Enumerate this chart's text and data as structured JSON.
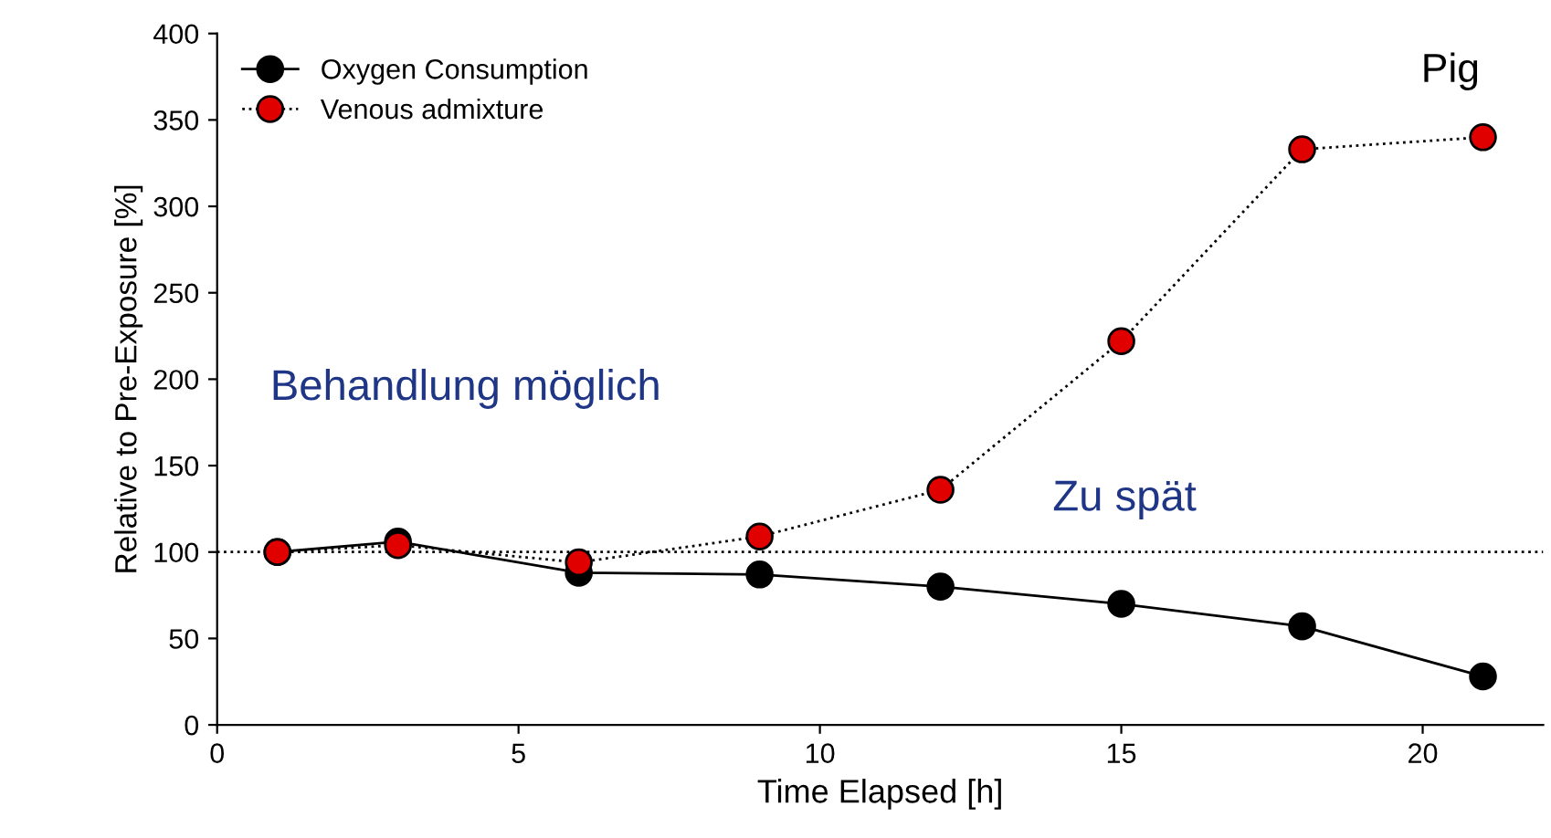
{
  "chart_data": {
    "type": "line",
    "xlabel": "Time Elapsed [h]",
    "ylabel": "Relative to Pre-Exposure [%]",
    "x": [
      1,
      3,
      6,
      9,
      12,
      15,
      18,
      21
    ],
    "series": [
      {
        "name": "Oxygen Consumption",
        "color": "#000000",
        "line_style": "solid",
        "values": [
          100,
          106,
          88,
          87,
          80,
          70,
          57,
          28
        ]
      },
      {
        "name": "Venous admixture",
        "color": "#e00000",
        "line_style": "dotted",
        "values": [
          100,
          104,
          94,
          109,
          136,
          222,
          333,
          340
        ]
      }
    ],
    "marker": "circle",
    "xlim": [
      0,
      22
    ],
    "xticks": [
      0,
      5,
      10,
      15,
      20
    ],
    "ylim": [
      0,
      400
    ],
    "yticks": [
      0,
      50,
      100,
      150,
      200,
      250,
      300,
      350,
      400
    ],
    "ref_lines": [
      {
        "axis": "y",
        "value": 100,
        "label": null,
        "color": "#000000",
        "line_style": "dotted"
      }
    ],
    "annotations": [
      "Pig",
      "Behandlung möglich",
      "Zu spät"
    ],
    "legend": "top left",
    "grid": false
  }
}
